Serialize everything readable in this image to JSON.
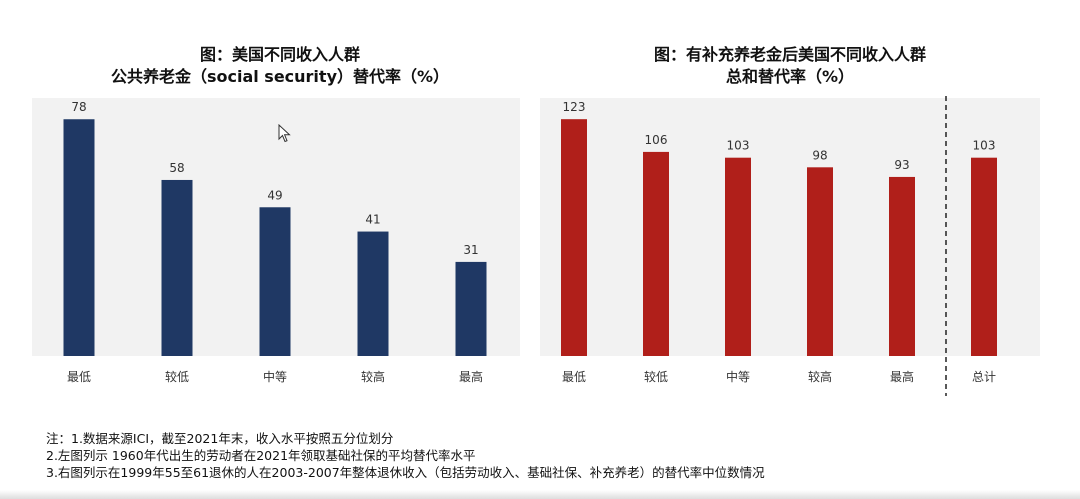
{
  "chart_data": [
    {
      "type": "bar",
      "title": "图：美国不同收入人群",
      "subtitle": "公共养老金（social security）替代率（%）",
      "categories": [
        "最低",
        "较低",
        "中等",
        "较高",
        "最高"
      ],
      "values": [
        78,
        58,
        49,
        41,
        31
      ],
      "ylim": [
        0,
        85
      ],
      "color": "#1f3864"
    },
    {
      "type": "bar",
      "title": "图：有补充养老金后美国不同收入人群",
      "subtitle": "总和替代率（%）",
      "categories": [
        "最低",
        "较低",
        "中等",
        "较高",
        "最高",
        "总计"
      ],
      "values": [
        123,
        106,
        103,
        98,
        93,
        103
      ],
      "ylim": [
        0,
        134
      ],
      "color": "#b01f1a"
    }
  ],
  "notes": [
    "注：1.数据来源ICI，截至2021年末，收入水平按照五分位划分",
    "2.左图列示 1960年代出生的劳动者在2021年领取基础社保的平均替代率水平",
    "3.右图列示在1999年55至61退休的人在2003-2007年整体退休收入（包括劳动收入、基础社保、补充养老）的替代率中位数情况"
  ]
}
